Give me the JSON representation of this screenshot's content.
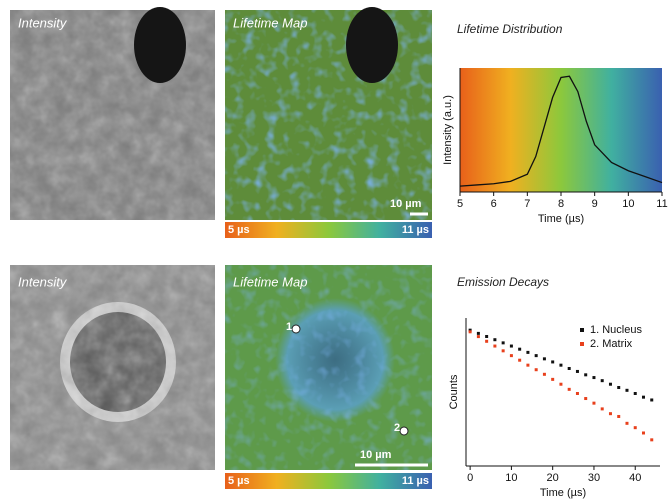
{
  "panels": [
    {
      "label": "Intensity"
    },
    {
      "label": "Lifetime Map",
      "scale_bar": "10 µm",
      "colorbar_min": "5 µs",
      "colorbar_max": "11 µs"
    },
    {
      "label": "Intensity"
    },
    {
      "label": "Lifetime Map",
      "scale_bar": "10 µm",
      "colorbar_min": "5 µs",
      "colorbar_max": "11 µs",
      "markers": [
        "1",
        "2"
      ]
    }
  ],
  "chart_data": [
    {
      "type": "line",
      "title": "Lifetime Distribution",
      "x_label": "Time (µs)",
      "y_label": "Intensity (a.u.)",
      "x": [
        5,
        5.5,
        6,
        6.5,
        7,
        7.25,
        7.5,
        7.75,
        8,
        8.25,
        8.5,
        8.75,
        9,
        9.5,
        10,
        10.5,
        11
      ],
      "values": [
        0.05,
        0.06,
        0.07,
        0.09,
        0.15,
        0.3,
        0.55,
        0.8,
        0.97,
        0.98,
        0.85,
        0.6,
        0.4,
        0.25,
        0.18,
        0.13,
        0.08
      ],
      "color": "#111111",
      "xlim": [
        5,
        11
      ],
      "ylim": [
        0,
        1.05
      ],
      "xticks": [
        5,
        6,
        7,
        8,
        9,
        10,
        11
      ]
    },
    {
      "type": "scatter",
      "title": "Emission Decays",
      "x_label": "Time (µs)",
      "y_label": "Counts",
      "log_y": true,
      "x": [
        0,
        2,
        4,
        6,
        8,
        10,
        12,
        14,
        16,
        18,
        20,
        22,
        24,
        26,
        28,
        30,
        32,
        34,
        36,
        38,
        40,
        42,
        44
      ],
      "series": [
        {
          "name": "1. Nucleus",
          "color": "#111111",
          "values": [
            300,
            262,
            230,
            201,
            176,
            154,
            135,
            118,
            103,
            90,
            79,
            69,
            60,
            53,
            46,
            41,
            36,
            31,
            27,
            24,
            21,
            18,
            16
          ]
        },
        {
          "name": "2. Matrix",
          "color": "#e8401c",
          "values": [
            280,
            229,
            188,
            154,
            126,
            103,
            85,
            69,
            57,
            47,
            38,
            31,
            25,
            21,
            17,
            14,
            11,
            9,
            8,
            6,
            5,
            4,
            3
          ]
        }
      ],
      "xlim": [
        -1,
        46
      ],
      "ylim": [
        1,
        500
      ],
      "xticks": [
        0,
        10,
        20,
        30,
        40
      ],
      "legend": "upper-right"
    }
  ]
}
